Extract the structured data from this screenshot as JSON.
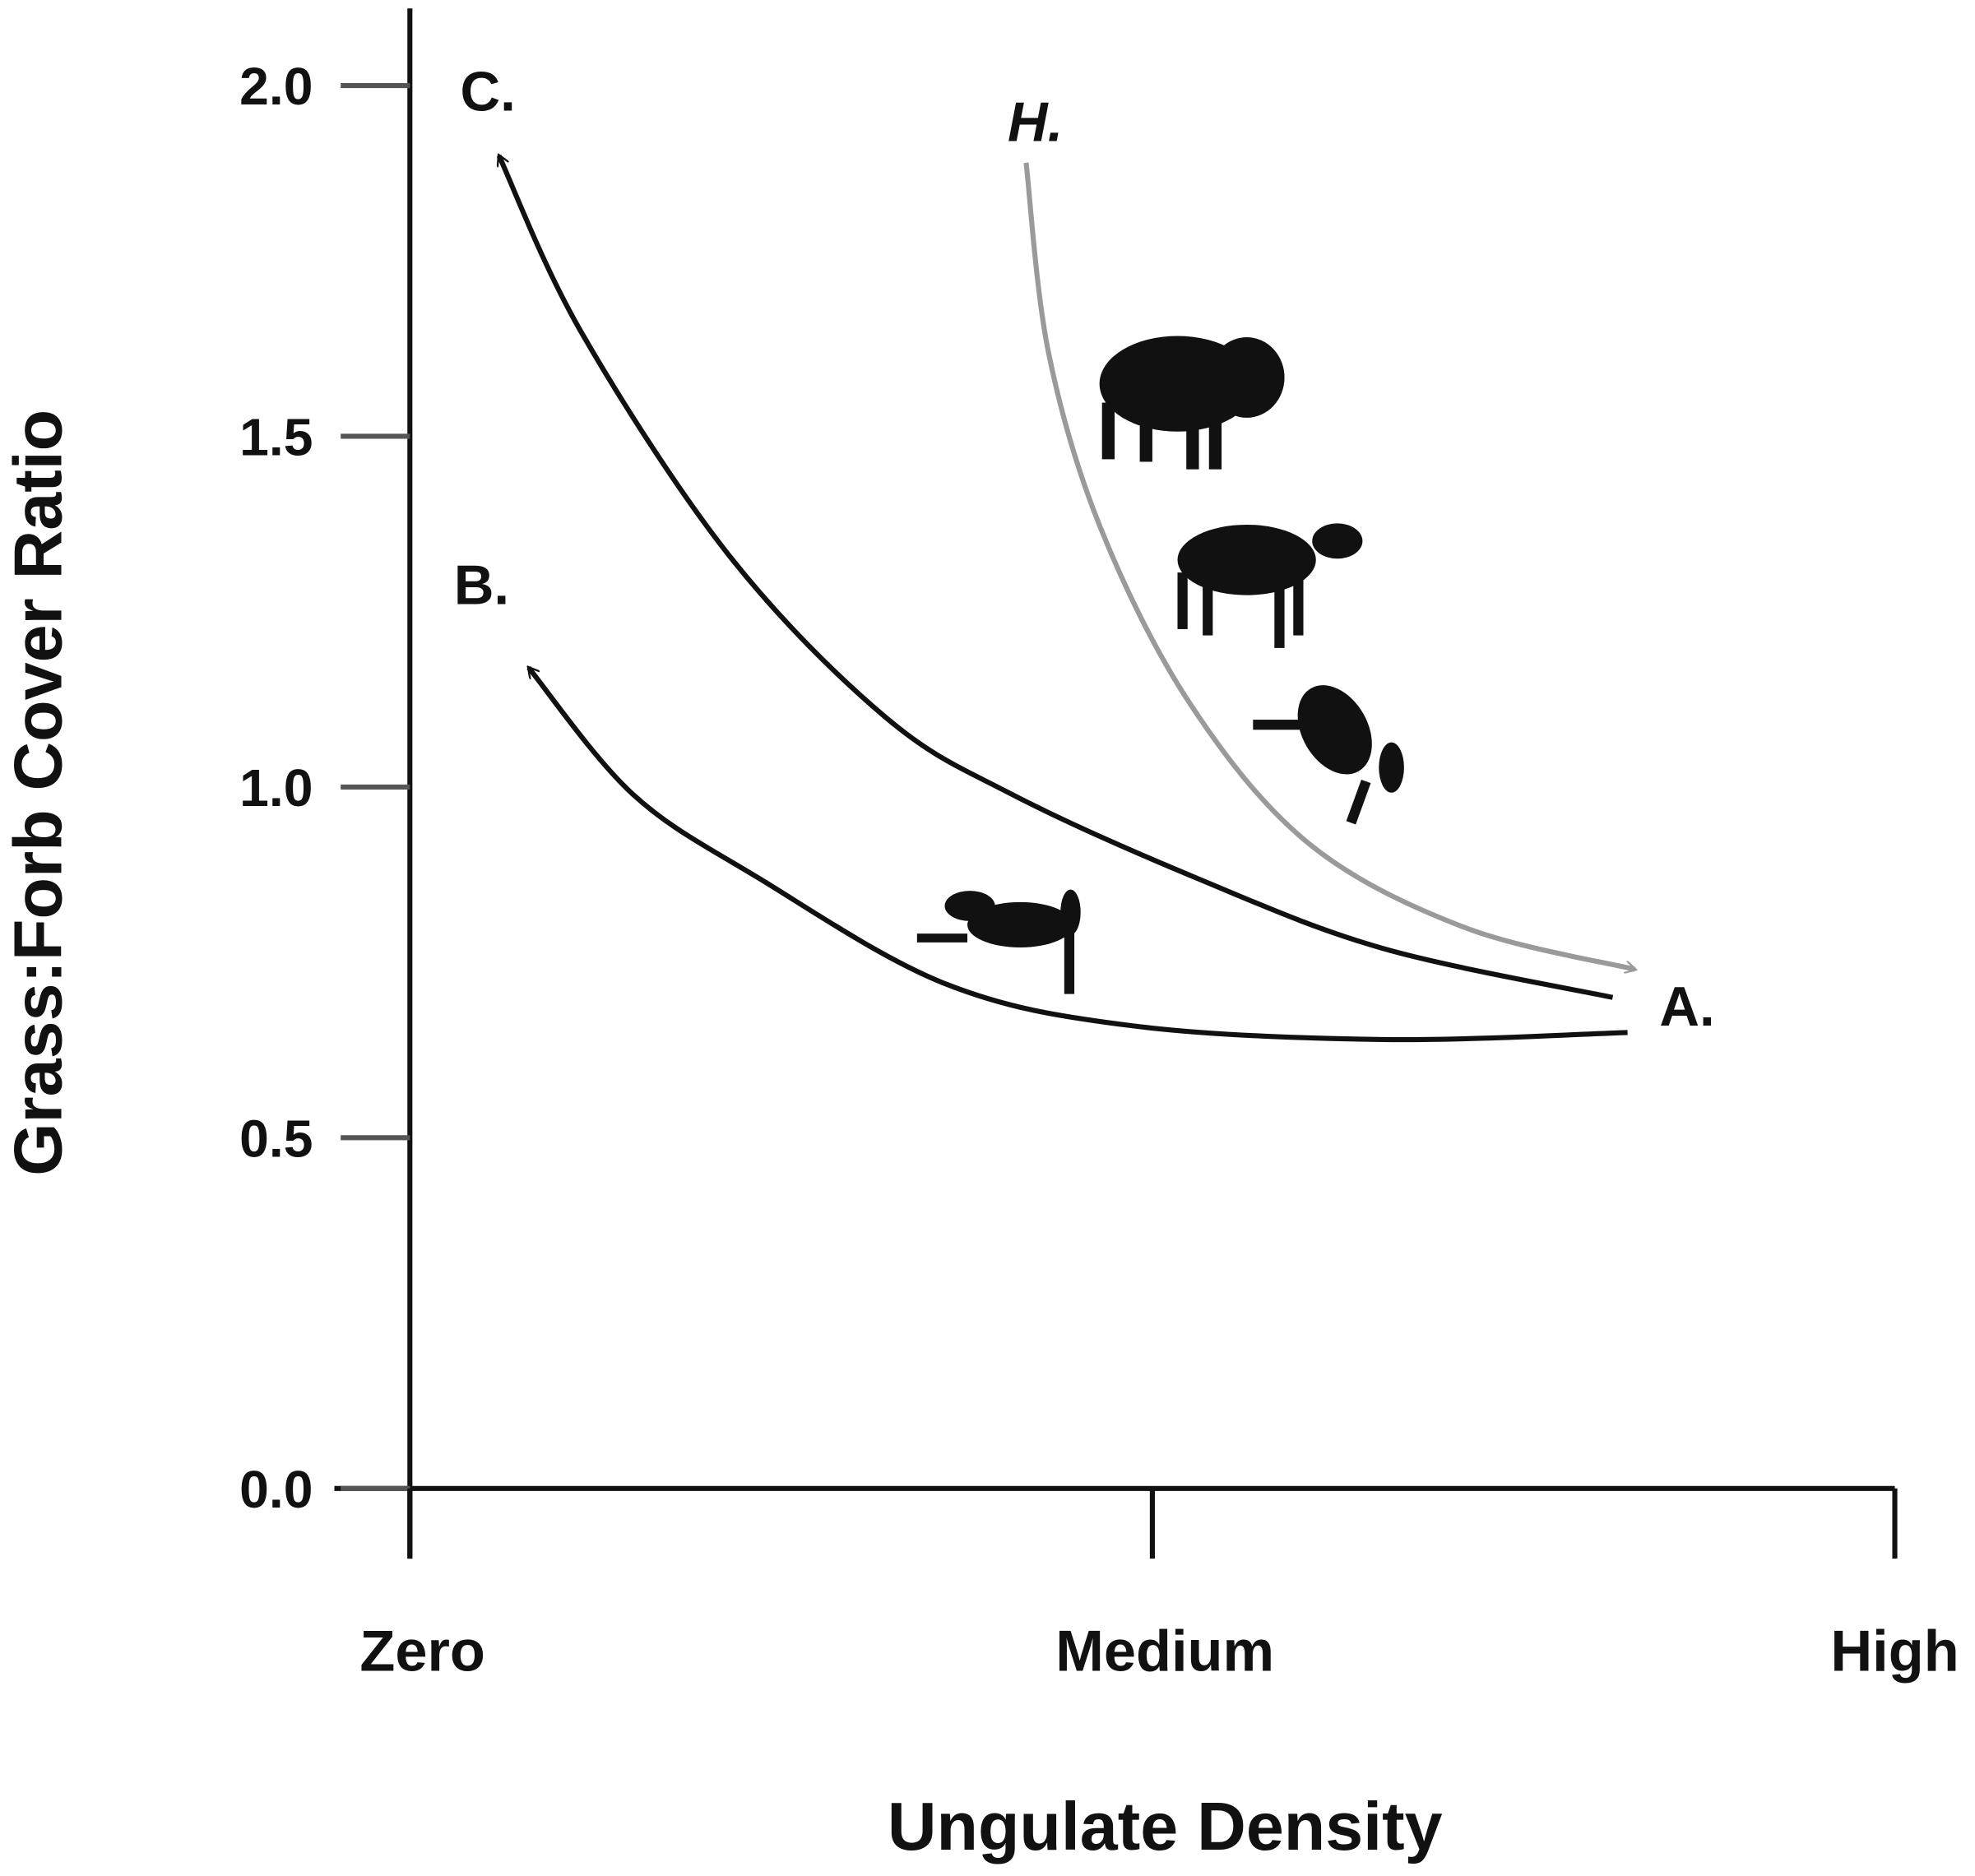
{
  "chart_data": {
    "type": "line",
    "xlabel": "Ungulate Density",
    "ylabel": "Grass:Forb Cover Ratio",
    "xlim": [
      0,
      2
    ],
    "xticks": [
      {
        "value": 0,
        "label": "Zero"
      },
      {
        "value": 1,
        "label": "Medium"
      },
      {
        "value": 2,
        "label": "High"
      }
    ],
    "ylim": [
      -0.1,
      2.11
    ],
    "yticks": [
      {
        "value": 0,
        "label": "0.0"
      },
      0.5,
      {
        "value": 1,
        "label": "1.0"
      },
      1.5,
      {
        "value": 2,
        "label": "2.0"
      }
    ],
    "series": [
      {
        "color": "#111111",
        "x": [
          1.62,
          1.31,
          1.06,
          0.81,
          0.64,
          0.43,
          0.23,
          0.12
        ],
        "values": [
          0.7,
          0.77,
          0.87,
          0.99,
          1.1,
          1.33,
          1.65,
          1.9
        ]
      },
      {
        "color": "#111111",
        "x": [
          1.64,
          1.31,
          0.97,
          0.72,
          0.47,
          0.3,
          0.16
        ],
        "values": [
          0.65,
          0.64,
          0.66,
          0.72,
          0.87,
          0.99,
          1.17
        ]
      },
      {
        "color": "#9a9a9a",
        "x": [
          0.83,
          0.86,
          0.93,
          1.05,
          1.21,
          1.42,
          1.65
        ],
        "values": [
          1.89,
          1.62,
          1.37,
          1.12,
          0.92,
          0.8,
          0.74
        ]
      }
    ],
    "annotations": [
      "C.",
      "B.",
      "H.",
      "A."
    ]
  }
}
